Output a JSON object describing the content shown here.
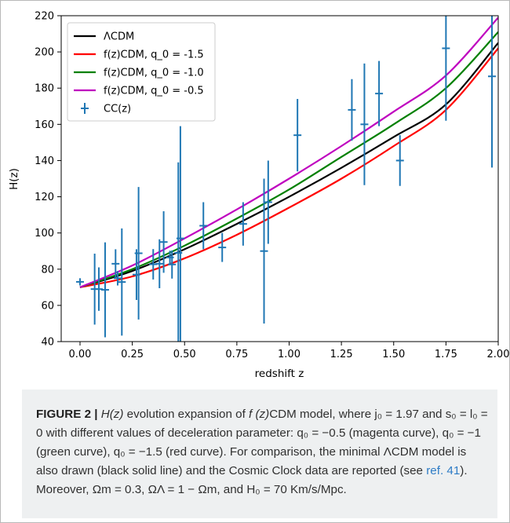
{
  "figure": {
    "label": "FIGURE 2 |",
    "caption_parts": [
      {
        "kind": "math",
        "text": "H(z)"
      },
      {
        "kind": "text",
        "text": " evolution expansion of "
      },
      {
        "kind": "math",
        "text": "f (z)"
      },
      {
        "kind": "text",
        "text": "CDM model, where j₀ = 1.97 and s₀ = l₀ = 0 with different values of deceleration parameter: q₀ = −0.5 (magenta curve), q₀ = −1 (green curve), q₀ = −1.5 (red curve). For comparison, the minimal ΛCDM model is also drawn (black solid line) and the Cosmic Clock data are reported (see "
      },
      {
        "kind": "link",
        "text": "ref. 41"
      },
      {
        "kind": "text",
        "text": "). Moreover, Ωm = 0.3, ΩΛ = 1 − Ωm, and H₀ = 70 Km/s/Mpc."
      }
    ]
  },
  "chart_data": {
    "type": "line",
    "xlabel": "redshift z",
    "ylabel": "H(z)",
    "xlim": [
      -0.09,
      2.0
    ],
    "ylim": [
      40,
      220
    ],
    "xticks": [
      "0.00",
      "0.25",
      "0.50",
      "0.75",
      "1.00",
      "1.25",
      "1.50",
      "1.75",
      "2.00"
    ],
    "xtick_values": [
      0,
      0.25,
      0.5,
      0.75,
      1.0,
      1.25,
      1.5,
      1.75,
      2.0
    ],
    "yticks": [
      "40",
      "60",
      "80",
      "100",
      "120",
      "140",
      "160",
      "180",
      "200",
      "220"
    ],
    "ytick_values": [
      40,
      60,
      80,
      100,
      120,
      140,
      160,
      180,
      200,
      220
    ],
    "grid": false,
    "legend_position": "top-left",
    "series": [
      {
        "name": "ΛCDM",
        "color": "#000000",
        "kind": "line",
        "x": [
          0,
          0.25,
          0.5,
          0.75,
          1.0,
          1.25,
          1.5,
          1.75,
          2.0
        ],
        "y": [
          70,
          79,
          91,
          105,
          120,
          136,
          153,
          171,
          205
        ]
      },
      {
        "name": "f(z)CDM, q_0 = -1.5",
        "color": "#ff0000",
        "kind": "line",
        "x": [
          0,
          0.25,
          0.5,
          0.75,
          1.0,
          1.25,
          1.5,
          1.75,
          2.0
        ],
        "y": [
          70,
          76,
          86,
          99,
          114,
          130,
          148,
          168,
          202
        ]
      },
      {
        "name": "f(z)CDM, q_0 = -1.0",
        "color": "#008000",
        "kind": "line",
        "x": [
          0,
          0.25,
          0.5,
          0.75,
          1.0,
          1.25,
          1.5,
          1.75,
          2.0
        ],
        "y": [
          70,
          80,
          93,
          108,
          124,
          142,
          160,
          180,
          211
        ]
      },
      {
        "name": "f(z)CDM, q_0 = -0.5",
        "color": "#bf00bf",
        "kind": "line",
        "x": [
          0,
          0.25,
          0.5,
          0.75,
          1.0,
          1.25,
          1.5,
          1.75,
          2.0
        ],
        "y": [
          70,
          82,
          97,
          113,
          130,
          148,
          167,
          187,
          219
        ]
      },
      {
        "name": "CC(z)",
        "color": "#1f77b4",
        "kind": "errorbar",
        "points": [
          {
            "x": 0.0,
            "y": 73,
            "err": 2
          },
          {
            "x": 0.07,
            "y": 69,
            "err": 19.6
          },
          {
            "x": 0.09,
            "y": 69,
            "err": 12
          },
          {
            "x": 0.12,
            "y": 68.6,
            "err": 26.2
          },
          {
            "x": 0.17,
            "y": 83,
            "err": 8
          },
          {
            "x": 0.18,
            "y": 75,
            "err": 4
          },
          {
            "x": 0.2,
            "y": 72.9,
            "err": 29.6
          },
          {
            "x": 0.27,
            "y": 77,
            "err": 14
          },
          {
            "x": 0.28,
            "y": 88.8,
            "err": 36.6
          },
          {
            "x": 0.35,
            "y": 82.7,
            "err": 8.4
          },
          {
            "x": 0.38,
            "y": 83,
            "err": 13.5
          },
          {
            "x": 0.4,
            "y": 95,
            "err": 17
          },
          {
            "x": 0.43,
            "y": 86.5,
            "err": 3.7
          },
          {
            "x": 0.44,
            "y": 82.6,
            "err": 7.8
          },
          {
            "x": 0.47,
            "y": 89,
            "err": 50
          },
          {
            "x": 0.48,
            "y": 97,
            "err": 62
          },
          {
            "x": 0.59,
            "y": 104,
            "err": 13
          },
          {
            "x": 0.68,
            "y": 92,
            "err": 8
          },
          {
            "x": 0.78,
            "y": 105,
            "err": 12
          },
          {
            "x": 0.88,
            "y": 90,
            "err": 40
          },
          {
            "x": 0.9,
            "y": 117,
            "err": 23
          },
          {
            "x": 1.04,
            "y": 154,
            "err": 20
          },
          {
            "x": 1.3,
            "y": 168,
            "err": 17
          },
          {
            "x": 1.36,
            "y": 160,
            "err": 33.6
          },
          {
            "x": 1.43,
            "y": 177,
            "err": 18
          },
          {
            "x": 1.53,
            "y": 140,
            "err": 14
          },
          {
            "x": 1.75,
            "y": 202,
            "err": 40
          },
          {
            "x": 1.97,
            "y": 186.5,
            "err": 50.4
          }
        ]
      }
    ]
  }
}
